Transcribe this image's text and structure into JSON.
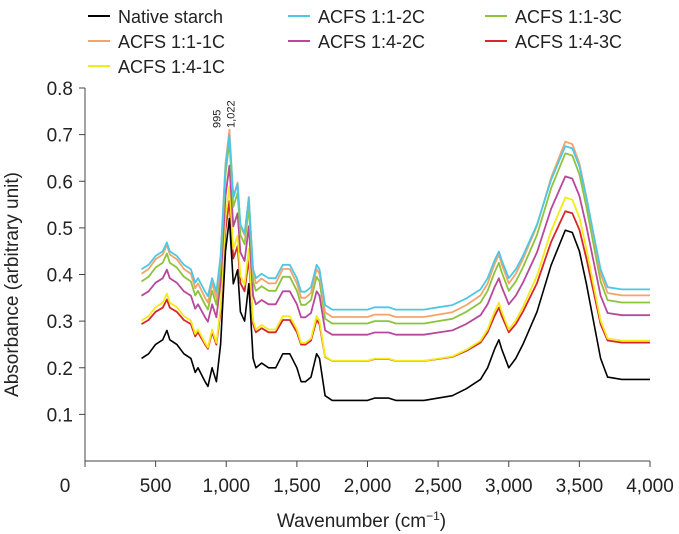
{
  "chart_data": {
    "type": "line",
    "title": "",
    "xlabel": "Wavenumber (cm",
    "xlabel_sup": "−1",
    "xlabel_end": ")",
    "ylabel": "Absorbance (arbitrary unit)",
    "xlim": [
      0,
      4000
    ],
    "ylim": [
      0,
      0.8
    ],
    "xticks": [
      0,
      500,
      1000,
      1500,
      2000,
      2500,
      3000,
      3500,
      4000
    ],
    "xtick_labels": [
      "0",
      "500",
      "1,000",
      "1,500",
      "2,000",
      "2,500",
      "3,000",
      "3,500",
      "4,000"
    ],
    "yticks": [
      0.1,
      0.2,
      0.3,
      0.4,
      0.5,
      0.6,
      0.7,
      0.8
    ],
    "ytick_labels": [
      "0.1",
      "0.2",
      "0.3",
      "0.4",
      "0.5",
      "0.6",
      "0.7",
      "0.8"
    ],
    "grid": false,
    "legend_position": "top",
    "annotations": [
      {
        "text": "995",
        "x": 995,
        "y": 0.71
      },
      {
        "text": "1,022",
        "x": 1022,
        "y": 0.71
      }
    ],
    "series": [
      {
        "name": "Native starch",
        "color": "#000000",
        "offset": 0.0,
        "scale": 1.0
      },
      {
        "name": "ACFS 1:1-1C",
        "color": "#f4a46a",
        "offset": 0.175,
        "scale": 1.03
      },
      {
        "name": "ACFS 1:4-1C",
        "color": "#f2ec1a",
        "offset": 0.09,
        "scale": 0.96
      },
      {
        "name": "ACFS 1:1-2C",
        "color": "#4ec7e6",
        "offset": 0.2,
        "scale": 0.96
      },
      {
        "name": "ACFS 1:4-2C",
        "color": "#b8489c",
        "offset": 0.15,
        "scale": 0.93
      },
      {
        "name": "ACFS 1:1-3C",
        "color": "#8cc43c",
        "offset": 0.165,
        "scale": 1.0
      },
      {
        "name": "ACFS 1:4-3C",
        "color": "#d8262c",
        "offset": 0.1,
        "scale": 0.88
      }
    ],
    "base_profile": {
      "x": [
        400,
        450,
        500,
        550,
        580,
        600,
        650,
        700,
        750,
        780,
        800,
        850,
        870,
        900,
        930,
        960,
        995,
        1022,
        1050,
        1080,
        1100,
        1130,
        1160,
        1190,
        1210,
        1250,
        1300,
        1350,
        1400,
        1450,
        1500,
        1530,
        1560,
        1600,
        1640,
        1660,
        1700,
        1750,
        1800,
        1900,
        2000,
        2050,
        2100,
        2150,
        2200,
        2300,
        2400,
        2500,
        2600,
        2700,
        2800,
        2850,
        2900,
        2930,
        2950,
        3000,
        3050,
        3100,
        3200,
        3300,
        3400,
        3450,
        3500,
        3550,
        3600,
        3650,
        3700,
        3800,
        3900,
        4000
      ],
      "y": [
        0.22,
        0.23,
        0.25,
        0.26,
        0.28,
        0.26,
        0.25,
        0.23,
        0.22,
        0.19,
        0.2,
        0.17,
        0.16,
        0.2,
        0.17,
        0.25,
        0.45,
        0.52,
        0.38,
        0.41,
        0.32,
        0.3,
        0.38,
        0.22,
        0.2,
        0.21,
        0.2,
        0.2,
        0.23,
        0.23,
        0.2,
        0.17,
        0.17,
        0.18,
        0.23,
        0.22,
        0.14,
        0.13,
        0.13,
        0.13,
        0.13,
        0.135,
        0.135,
        0.135,
        0.13,
        0.13,
        0.13,
        0.135,
        0.14,
        0.155,
        0.175,
        0.2,
        0.24,
        0.26,
        0.24,
        0.2,
        0.22,
        0.25,
        0.32,
        0.42,
        0.495,
        0.49,
        0.45,
        0.38,
        0.3,
        0.22,
        0.18,
        0.175,
        0.175,
        0.175
      ]
    }
  }
}
